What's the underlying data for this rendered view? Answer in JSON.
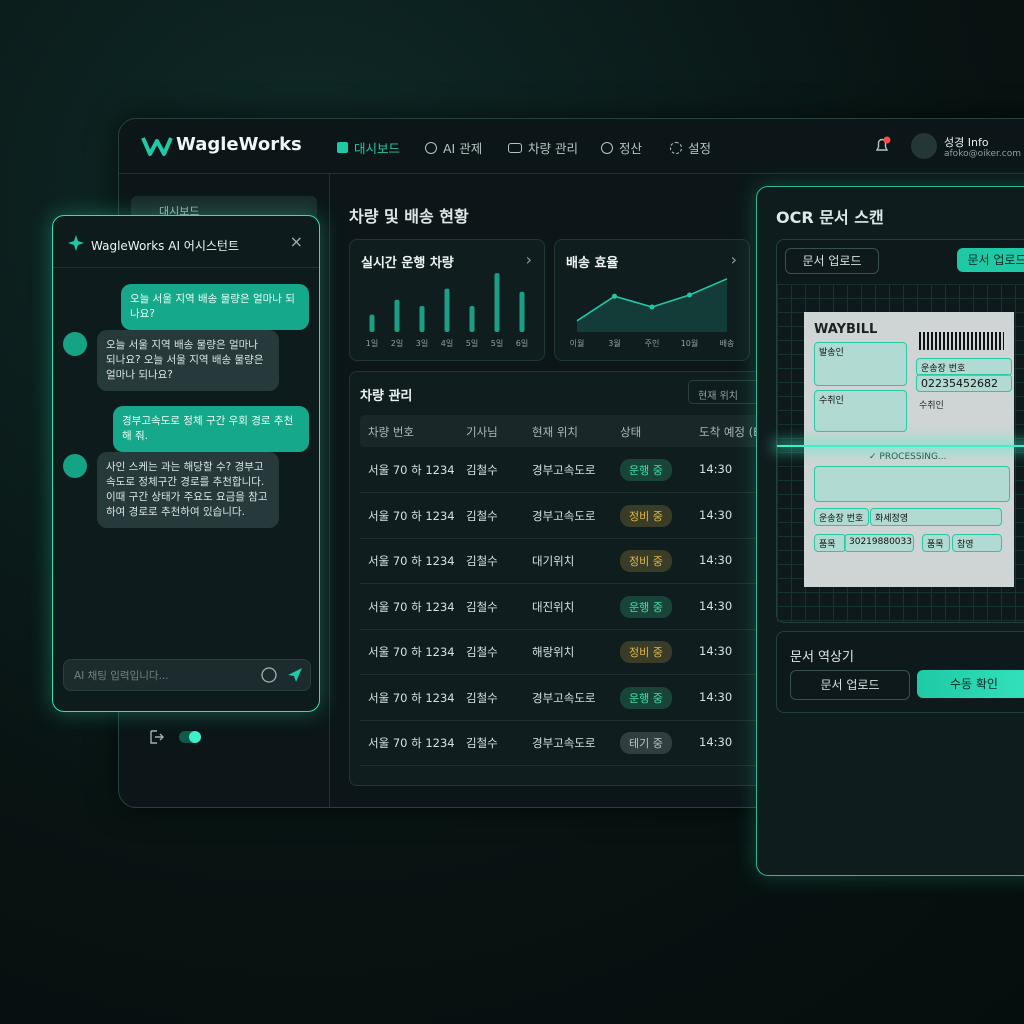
{
  "nav": {
    "logo": "WagleWorks",
    "menu": [
      "대시보드",
      "AI 관제",
      "차량 관리",
      "정산",
      "설정"
    ],
    "user_name": "성경 Info",
    "user_email": "afoko@oiker.com"
  },
  "sidebar": {
    "items": [
      "대시보드"
    ]
  },
  "chat": {
    "title": "WagleWorks AI 어시스턴트",
    "messages": [
      {
        "role": "user",
        "text": "오늘 서울 지역 배송 물량은 얼마나 되나요?"
      },
      {
        "role": "assistant",
        "text": "오늘 서울 지역 배송 물량은 얼마나 되나요? 오늘 서울 지역 배송 물량은 얼마나 되나요?"
      },
      {
        "role": "user",
        "text": "경부고속도로 정체 구간 우회 경로 추천해 줘."
      },
      {
        "role": "assistant",
        "text": "사인 스케는 과는 해당할 수? 경부고속도로 정체구간 경로를 추천합니다. 이때 구간 상태가 주요도 요금을 참고하여 경로로 추천하여 있습니다."
      }
    ],
    "placeholder": "AI 채팅 입력입니다..."
  },
  "dashboard": {
    "title": "차량 및 배송 현황",
    "live_card": {
      "title": "실시간 운행 차량",
      "labels": [
        "1일",
        "2일",
        "3일",
        "4일",
        "5일",
        "5일",
        "6일"
      ],
      "values": [
        28,
        52,
        42,
        70,
        42,
        95,
        65
      ],
      "ylim": [
        0,
        100
      ],
      "color": "#1fc9a6"
    },
    "efficiency_card": {
      "title": "배송 효율",
      "labels": [
        "이월",
        "3월",
        "주인",
        "10월",
        "배송"
      ],
      "values": [
        12,
        53,
        35,
        55,
        82
      ],
      "ylim": [
        0,
        100
      ],
      "color": "#1fc9a6"
    },
    "vehicles": {
      "title": "차량 관리",
      "search": "현재 위치",
      "columns": [
        "차량 번호",
        "기사님",
        "현재 위치",
        "상태",
        "도착 예정 (ETA)"
      ],
      "rows": [
        [
          "서울 70 하 1234",
          "김철수",
          "경부고속도로",
          "운행 중",
          "14:30"
        ],
        [
          "서울 70 하 1234",
          "김철수",
          "경부고속도로",
          "정비 중",
          "14:30"
        ],
        [
          "서울 70 하 1234",
          "김철수",
          "대기위치",
          "정비 중",
          "14:30"
        ],
        [
          "서울 70 하 1234",
          "김철수",
          "대진위치",
          "운행 중",
          "14:30"
        ],
        [
          "서울 70 하 1234",
          "김철수",
          "해랑위치",
          "정비 중",
          "14:30"
        ],
        [
          "서울 70 하 1234",
          "김철수",
          "경부고속도로",
          "운행 중",
          "14:30"
        ],
        [
          "서울 70 하 1234",
          "김철수",
          "경부고속도로",
          "테기 중",
          "14:30"
        ]
      ],
      "status_colors": [
        "#3ee0a6",
        "#e0b84a",
        "#e0b84a",
        "#3ee0a6",
        "#e0b84a",
        "#3ee0a6",
        "#b8c4c6"
      ]
    }
  },
  "ocr": {
    "title": "OCR 문서 스캔",
    "upload_outline": "문서 업로드",
    "upload_primary": "문서 업로드",
    "doc": {
      "title": "WAYBILL",
      "sender": "발송인",
      "receiver": "수취인",
      "sender2": "운송장 번호",
      "tracking": "02235452682",
      "receiver2": "수취인",
      "processing": "✓ PROCESSING...",
      "field_label": "운송장 번호",
      "field_value": "화세정영",
      "item_label": "품목",
      "item_value": "30219880033",
      "item_label2": "품목",
      "item_value2": "참영"
    },
    "result_title": "문서 역상기",
    "result_buttons": [
      "문서 업로드",
      "수동 확인"
    ]
  }
}
